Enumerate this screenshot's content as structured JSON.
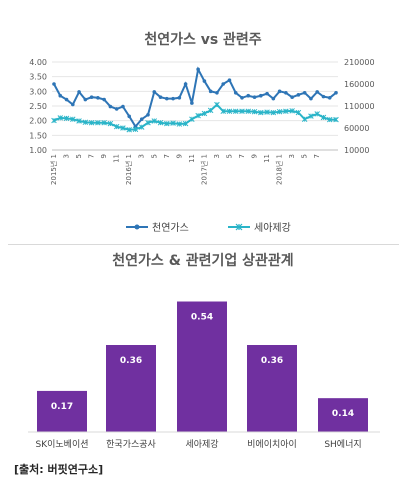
{
  "chart_data": [
    {
      "type": "line",
      "title": "천연가스 vs 관련주",
      "y_left": {
        "ticks": [
          "4.00",
          "3.50",
          "3.00",
          "2.50",
          "2.00",
          "1.50",
          "1.00"
        ],
        "ylim": [
          1.0,
          4.0
        ]
      },
      "y_right": {
        "ticks": [
          "210000",
          "160000",
          "110000",
          "60000",
          "10000"
        ],
        "ylim": [
          10000,
          210000
        ]
      },
      "x_year_labels": [
        "2015년 1",
        "2016년 1",
        "2017년 1",
        "2018년 1"
      ],
      "x_tick_labels": [
        "3",
        "5",
        "7",
        "9",
        "11",
        "3",
        "5",
        "7",
        "9",
        "11",
        "3",
        "5",
        "7",
        "9",
        "11",
        "3",
        "5",
        "7"
      ],
      "legend_position": "bottom",
      "grid": true,
      "series": [
        {
          "name": "천연가스",
          "axis": "left",
          "color": "#2E75B6",
          "values": [
            3.25,
            2.85,
            2.72,
            2.55,
            2.98,
            2.72,
            2.8,
            2.78,
            2.72,
            2.48,
            2.4,
            2.48,
            2.15,
            1.8,
            2.05,
            2.2,
            2.98,
            2.8,
            2.75,
            2.75,
            2.78,
            3.25,
            2.6,
            3.75,
            3.35,
            3.0,
            2.95,
            3.25,
            3.38,
            2.95,
            2.78,
            2.85,
            2.8,
            2.85,
            2.92,
            2.75,
            3.0,
            2.95,
            2.8,
            2.88,
            2.95,
            2.75,
            2.98,
            2.82,
            2.78,
            2.95
          ]
        },
        {
          "name": "세아제강",
          "axis": "right",
          "color": "#2AB4C8",
          "values": [
            77000,
            83000,
            82000,
            80000,
            76000,
            73000,
            72000,
            72000,
            72000,
            70000,
            63000,
            60000,
            56000,
            57000,
            62000,
            72000,
            76000,
            72000,
            70000,
            71000,
            69000,
            70000,
            80000,
            88000,
            93000,
            100000,
            113000,
            98000,
            98000,
            98000,
            98000,
            98000,
            97000,
            95000,
            96000,
            95000,
            97000,
            98000,
            99000,
            95000,
            80000,
            87000,
            92000,
            84000,
            79000,
            79000
          ]
        }
      ]
    },
    {
      "type": "bar",
      "title": "천연가스 & 관련기업 상관관계",
      "categories": [
        "SK이노베이션",
        "한국가스공사",
        "세아제강",
        "비에이치아이",
        "SH에너지"
      ],
      "values": [
        0.17,
        0.36,
        0.54,
        0.36,
        0.14
      ],
      "value_labels": [
        "0.17",
        "0.36",
        "0.54",
        "0.36",
        "0.14"
      ],
      "ylim": [
        0,
        0.6
      ],
      "color": "#7030A0"
    }
  ],
  "source": "[출처: 버핏연구소]"
}
